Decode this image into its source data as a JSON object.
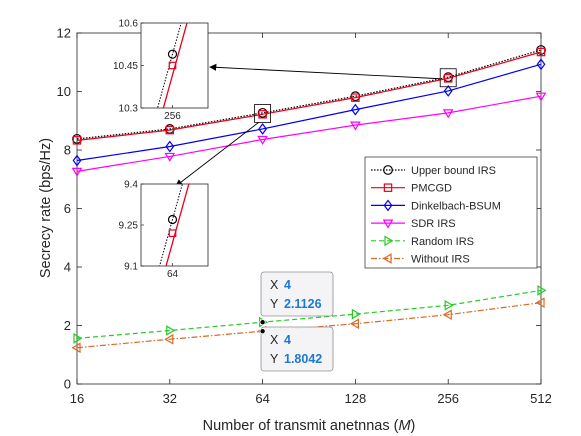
{
  "chart_data": {
    "type": "line",
    "xlabel": "Number of transmit anetnnas (M)",
    "xlabel_main": "Number of transmit anetnnas (",
    "xlabel_var": "M",
    "xlabel_close": ")",
    "ylabel": "Secrecy rate (bps/Hz)",
    "x_categories": [
      "16",
      "32",
      "64",
      "128",
      "256",
      "512"
    ],
    "ylim": [
      0,
      12
    ],
    "yticks": [
      "0",
      "2",
      "4",
      "6",
      "8",
      "10",
      "12"
    ],
    "grid": false,
    "legend_position": "center-right",
    "series": [
      {
        "name": "Upper bound IRS",
        "color": "#000000",
        "marker": "circle",
        "dash": "dotted",
        "values": [
          8.38,
          8.72,
          9.27,
          9.84,
          10.49,
          11.42
        ]
      },
      {
        "name": "PMCGD",
        "color": "#e8001c",
        "marker": "square",
        "dash": "solid",
        "values": [
          8.33,
          8.68,
          9.22,
          9.79,
          10.45,
          11.35
        ]
      },
      {
        "name": "Dinkelbach-BSUM",
        "color": "#0000f0",
        "marker": "diamond",
        "dash": "solid",
        "values": [
          7.64,
          8.12,
          8.72,
          9.38,
          10.02,
          10.93
        ]
      },
      {
        "name": "SDR IRS",
        "color": "#ff00ff",
        "marker": "triangle-down",
        "dash": "solid",
        "values": [
          7.27,
          7.78,
          8.36,
          8.85,
          9.27,
          9.84
        ]
      },
      {
        "name": "Random IRS",
        "color": "#22cc22",
        "marker": "triangle-right",
        "dash": "dashed",
        "values": [
          1.56,
          1.83,
          2.1126,
          2.39,
          2.69,
          3.2
        ]
      },
      {
        "name": "Without IRS",
        "color": "#d96a29",
        "marker": "triangle-left",
        "dash": "dashdot",
        "values": [
          1.24,
          1.53,
          1.8042,
          2.06,
          2.37,
          2.78
        ]
      }
    ],
    "insets": [
      {
        "x_tick": "256",
        "yticks": [
          "10.3",
          "10.45",
          "10.6"
        ],
        "ylim": [
          10.3,
          10.6
        ],
        "upper": 10.49,
        "pmcgd": 10.45
      },
      {
        "x_tick": "64",
        "yticks": [
          "9.1",
          "9.25",
          "9.4"
        ],
        "ylim": [
          9.1,
          9.4
        ],
        "upper": 9.27,
        "pmcgd": 9.22
      }
    ],
    "datatips": [
      {
        "x_label": "X",
        "x_value": "4",
        "y_label": "Y",
        "y_value": "2.1126"
      },
      {
        "x_label": "X",
        "x_value": "4",
        "y_label": "Y",
        "y_value": "1.8042"
      }
    ]
  }
}
